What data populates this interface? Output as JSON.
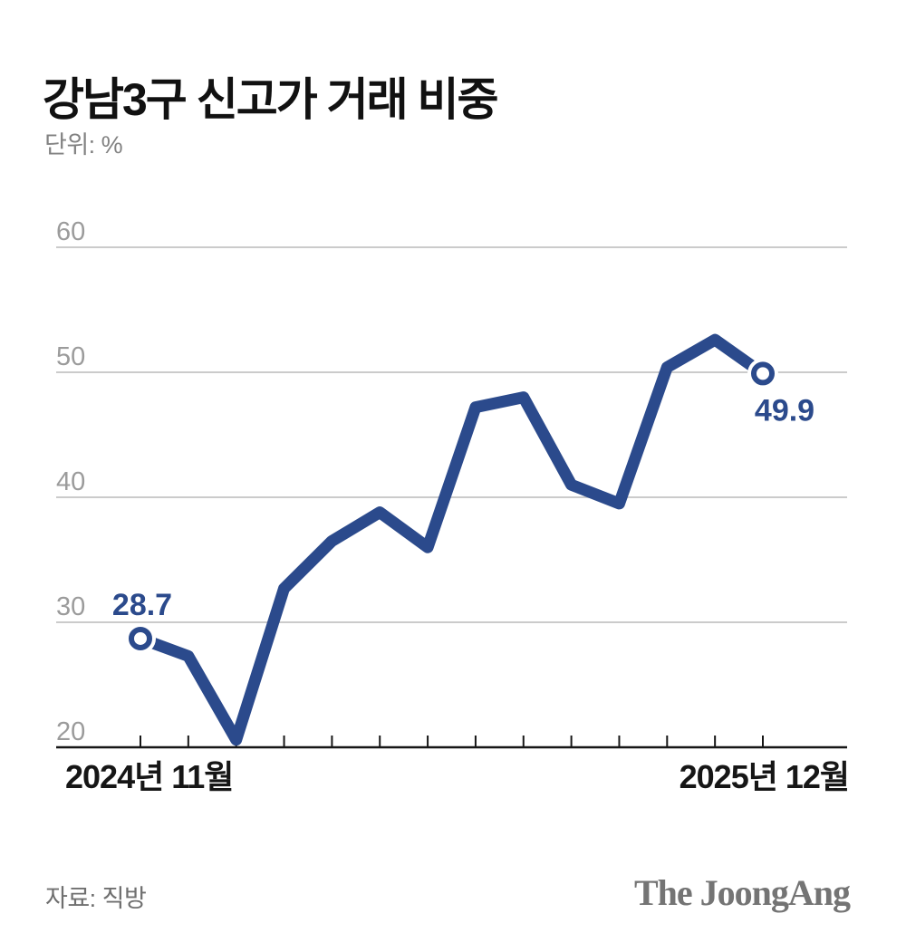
{
  "page": {
    "title": "강남3구 신고가 거래 비중",
    "unit_label": "단위: %",
    "source_label": "자료: 직방",
    "brand": "The JoongAng"
  },
  "chart_data": {
    "type": "line",
    "title": "강남3구 신고가 거래 비중",
    "unit": "%",
    "x": [
      "2024-11",
      "2024-12",
      "2025-01",
      "2025-02",
      "2025-03",
      "2025-04",
      "2025-05",
      "2025-06",
      "2025-07",
      "2025-08",
      "2025-09",
      "2025-10",
      "2025-11",
      "2025-12"
    ],
    "values": [
      28.7,
      27.3,
      20.6,
      32.7,
      36.5,
      38.8,
      36.0,
      47.2,
      48.0,
      41.0,
      39.5,
      50.4,
      52.6,
      49.9
    ],
    "x_axis": {
      "start_label": "2024년 11월",
      "end_label": "2025년 12월",
      "tick_count": 14
    },
    "y_axis": {
      "min": 20,
      "max": 60,
      "ticks": [
        20,
        30,
        40,
        50,
        60
      ]
    },
    "grid": "horizontal",
    "endpoint_marker": "open-circle",
    "point_labels": [
      {
        "index": 0,
        "text": "28.7",
        "placement": "above"
      },
      {
        "index": 13,
        "text": "49.9",
        "placement": "below-right"
      }
    ],
    "colors": {
      "line": "#2b4a8c",
      "point_label": "#2b4a8c",
      "grid": "#cbcbcb",
      "axis": "#161616",
      "y_tick_label": "#9b9b9b",
      "x_label": "#161616"
    }
  }
}
